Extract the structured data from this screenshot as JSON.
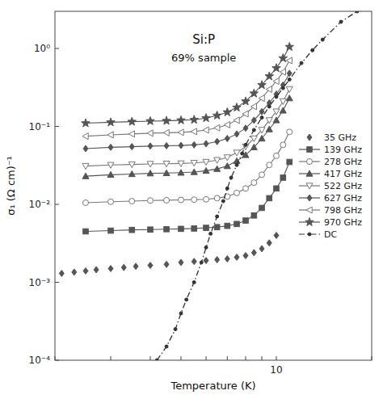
{
  "chart_data": {
    "type": "line",
    "xlabel": "Temperature (K)",
    "ylabel": "σ₁ (Ω cm)⁻¹",
    "annotations": [
      "Si:P",
      "69% sample"
    ],
    "log": true,
    "grid": false,
    "legend": "center right",
    "xlim": [
      2.0,
      20.0
    ],
    "ylim": [
      0.0001,
      3.0
    ],
    "xticks": [
      {
        "value": 2,
        "label": null
      },
      {
        "value": 3,
        "label": null
      },
      {
        "value": 4,
        "label": null
      },
      {
        "value": 5,
        "label": null
      },
      {
        "value": 6,
        "label": null
      },
      {
        "value": 7,
        "label": null
      },
      {
        "value": 8,
        "label": null
      },
      {
        "value": 9,
        "label": null
      },
      10,
      {
        "value": 20,
        "label": null
      }
    ],
    "yticks": [
      {
        "value": 0.0001,
        "label": "10⁻⁴"
      },
      {
        "value": 0.001,
        "label": "10⁻³"
      },
      {
        "value": 0.01,
        "label": "10⁻²"
      },
      {
        "value": 0.1,
        "label": "10⁻¹"
      },
      {
        "value": 1,
        "label": "10⁰"
      }
    ],
    "series": [
      {
        "name": "35 GHz",
        "type": "scatter",
        "color": "#555555",
        "marker": "diamond",
        "x": [
          2.1,
          2.3,
          2.5,
          2.7,
          3.0,
          3.3,
          3.6,
          4.0,
          4.5,
          5.0,
          5.5,
          6.0,
          6.5,
          7.0,
          7.5,
          8.0,
          8.5,
          9.0,
          9.5,
          10.0
        ],
        "values": [
          0.0013,
          0.00135,
          0.0014,
          0.00145,
          0.0015,
          0.00155,
          0.0016,
          0.00165,
          0.0017,
          0.0018,
          0.00185,
          0.0019,
          0.00195,
          0.002,
          0.0021,
          0.0022,
          0.0024,
          0.0027,
          0.0032,
          0.004
        ]
      },
      {
        "name": "139 GHz",
        "color": "#555555",
        "marker": "square",
        "line_style": "solid",
        "x": [
          2.5,
          3.0,
          3.5,
          4.0,
          4.5,
          5.0,
          5.5,
          6.0,
          6.5,
          7.0,
          7.5,
          8.0,
          8.5,
          9.0,
          9.5,
          10.0,
          10.5,
          11.0
        ],
        "values": [
          0.0045,
          0.0046,
          0.0047,
          0.00475,
          0.0048,
          0.00485,
          0.0049,
          0.005,
          0.0051,
          0.0053,
          0.0056,
          0.0062,
          0.0072,
          0.009,
          0.012,
          0.016,
          0.022,
          0.035
        ]
      },
      {
        "name": "278 GHz",
        "color": "#777777",
        "marker": "circle-open",
        "line_style": "solid",
        "x": [
          2.5,
          3.0,
          3.5,
          4.0,
          4.5,
          5.0,
          5.5,
          6.0,
          6.5,
          7.0,
          7.5,
          8.0,
          8.5,
          9.0,
          9.5,
          10.0,
          10.5,
          11.0
        ],
        "values": [
          0.0105,
          0.0108,
          0.011,
          0.0112,
          0.0113,
          0.0114,
          0.0115,
          0.0116,
          0.012,
          0.0126,
          0.014,
          0.016,
          0.019,
          0.024,
          0.032,
          0.042,
          0.058,
          0.085
        ]
      },
      {
        "name": "417 GHz",
        "color": "#555555",
        "marker": "triangle-up",
        "line_style": "solid",
        "x": [
          2.5,
          3.0,
          3.5,
          4.0,
          4.5,
          5.0,
          5.5,
          6.0,
          6.5,
          7.0,
          7.5,
          8.0,
          8.5,
          9.0,
          9.5,
          10.0,
          10.5,
          11.0
        ],
        "values": [
          0.023,
          0.024,
          0.0245,
          0.025,
          0.0252,
          0.0255,
          0.026,
          0.027,
          0.0285,
          0.031,
          0.036,
          0.043,
          0.054,
          0.07,
          0.092,
          0.12,
          0.16,
          0.23
        ]
      },
      {
        "name": "522 GHz",
        "color": "#777777",
        "marker": "triangle-down-open",
        "line_style": "solid",
        "x": [
          2.5,
          3.0,
          3.5,
          4.0,
          4.5,
          5.0,
          5.5,
          6.0,
          6.5,
          7.0,
          7.5,
          8.0,
          8.5,
          9.0,
          9.5,
          10.0,
          10.5,
          11.0
        ],
        "values": [
          0.031,
          0.032,
          0.0325,
          0.033,
          0.0332,
          0.0335,
          0.034,
          0.035,
          0.037,
          0.04,
          0.046,
          0.055,
          0.07,
          0.09,
          0.12,
          0.155,
          0.21,
          0.3
        ]
      },
      {
        "name": "627 GHz",
        "color": "#555555",
        "marker": "diamond",
        "line_style": "solid",
        "x": [
          2.5,
          3.0,
          3.5,
          4.0,
          4.5,
          5.0,
          5.5,
          6.0,
          6.5,
          7.0,
          7.5,
          8.0,
          8.5,
          9.0,
          9.5,
          10.0,
          10.5,
          11.0
        ],
        "values": [
          0.052,
          0.054,
          0.055,
          0.056,
          0.0565,
          0.057,
          0.058,
          0.06,
          0.064,
          0.07,
          0.08,
          0.095,
          0.12,
          0.155,
          0.2,
          0.26,
          0.34,
          0.48
        ]
      },
      {
        "name": "798 GHz",
        "color": "#777777",
        "marker": "triangle-left-open",
        "line_style": "solid",
        "x": [
          2.5,
          3.0,
          3.5,
          4.0,
          4.5,
          5.0,
          5.5,
          6.0,
          6.5,
          7.0,
          7.5,
          8.0,
          8.5,
          9.0,
          9.5,
          10.0,
          10.5,
          11.0
        ],
        "values": [
          0.075,
          0.078,
          0.08,
          0.082,
          0.083,
          0.084,
          0.086,
          0.09,
          0.096,
          0.105,
          0.12,
          0.145,
          0.18,
          0.23,
          0.3,
          0.38,
          0.5,
          0.7
        ]
      },
      {
        "name": "970 GHz",
        "color": "#555555",
        "marker": "star",
        "line_style": "solid",
        "x": [
          2.5,
          3.0,
          3.5,
          4.0,
          4.5,
          5.0,
          5.5,
          6.0,
          6.5,
          7.0,
          7.5,
          8.0,
          8.5,
          9.0,
          9.5,
          10.0,
          10.5,
          11.0
        ],
        "values": [
          0.11,
          0.113,
          0.115,
          0.117,
          0.118,
          0.12,
          0.122,
          0.128,
          0.138,
          0.152,
          0.175,
          0.21,
          0.265,
          0.34,
          0.44,
          0.56,
          0.75,
          1.05
        ]
      },
      {
        "name": "DC",
        "color": "#333333",
        "marker": "point",
        "line_style": "dashdot",
        "x": [
          4.2,
          4.5,
          4.8,
          5.0,
          5.2,
          5.5,
          5.8,
          6.0,
          6.2,
          6.5,
          6.8,
          7.0,
          7.2,
          7.5,
          7.8,
          8.0,
          8.5,
          9.0,
          9.5,
          10.0,
          10.5,
          11.0,
          12.0,
          13.0,
          14.0,
          16.0,
          18.0
        ],
        "values": [
          0.0001,
          0.00015,
          0.00025,
          0.0004,
          0.0006,
          0.001,
          0.0018,
          0.0028,
          0.0042,
          0.007,
          0.011,
          0.016,
          0.022,
          0.032,
          0.045,
          0.058,
          0.09,
          0.13,
          0.18,
          0.24,
          0.31,
          0.4,
          0.65,
          0.95,
          1.3,
          2.2,
          3.0
        ]
      }
    ]
  }
}
